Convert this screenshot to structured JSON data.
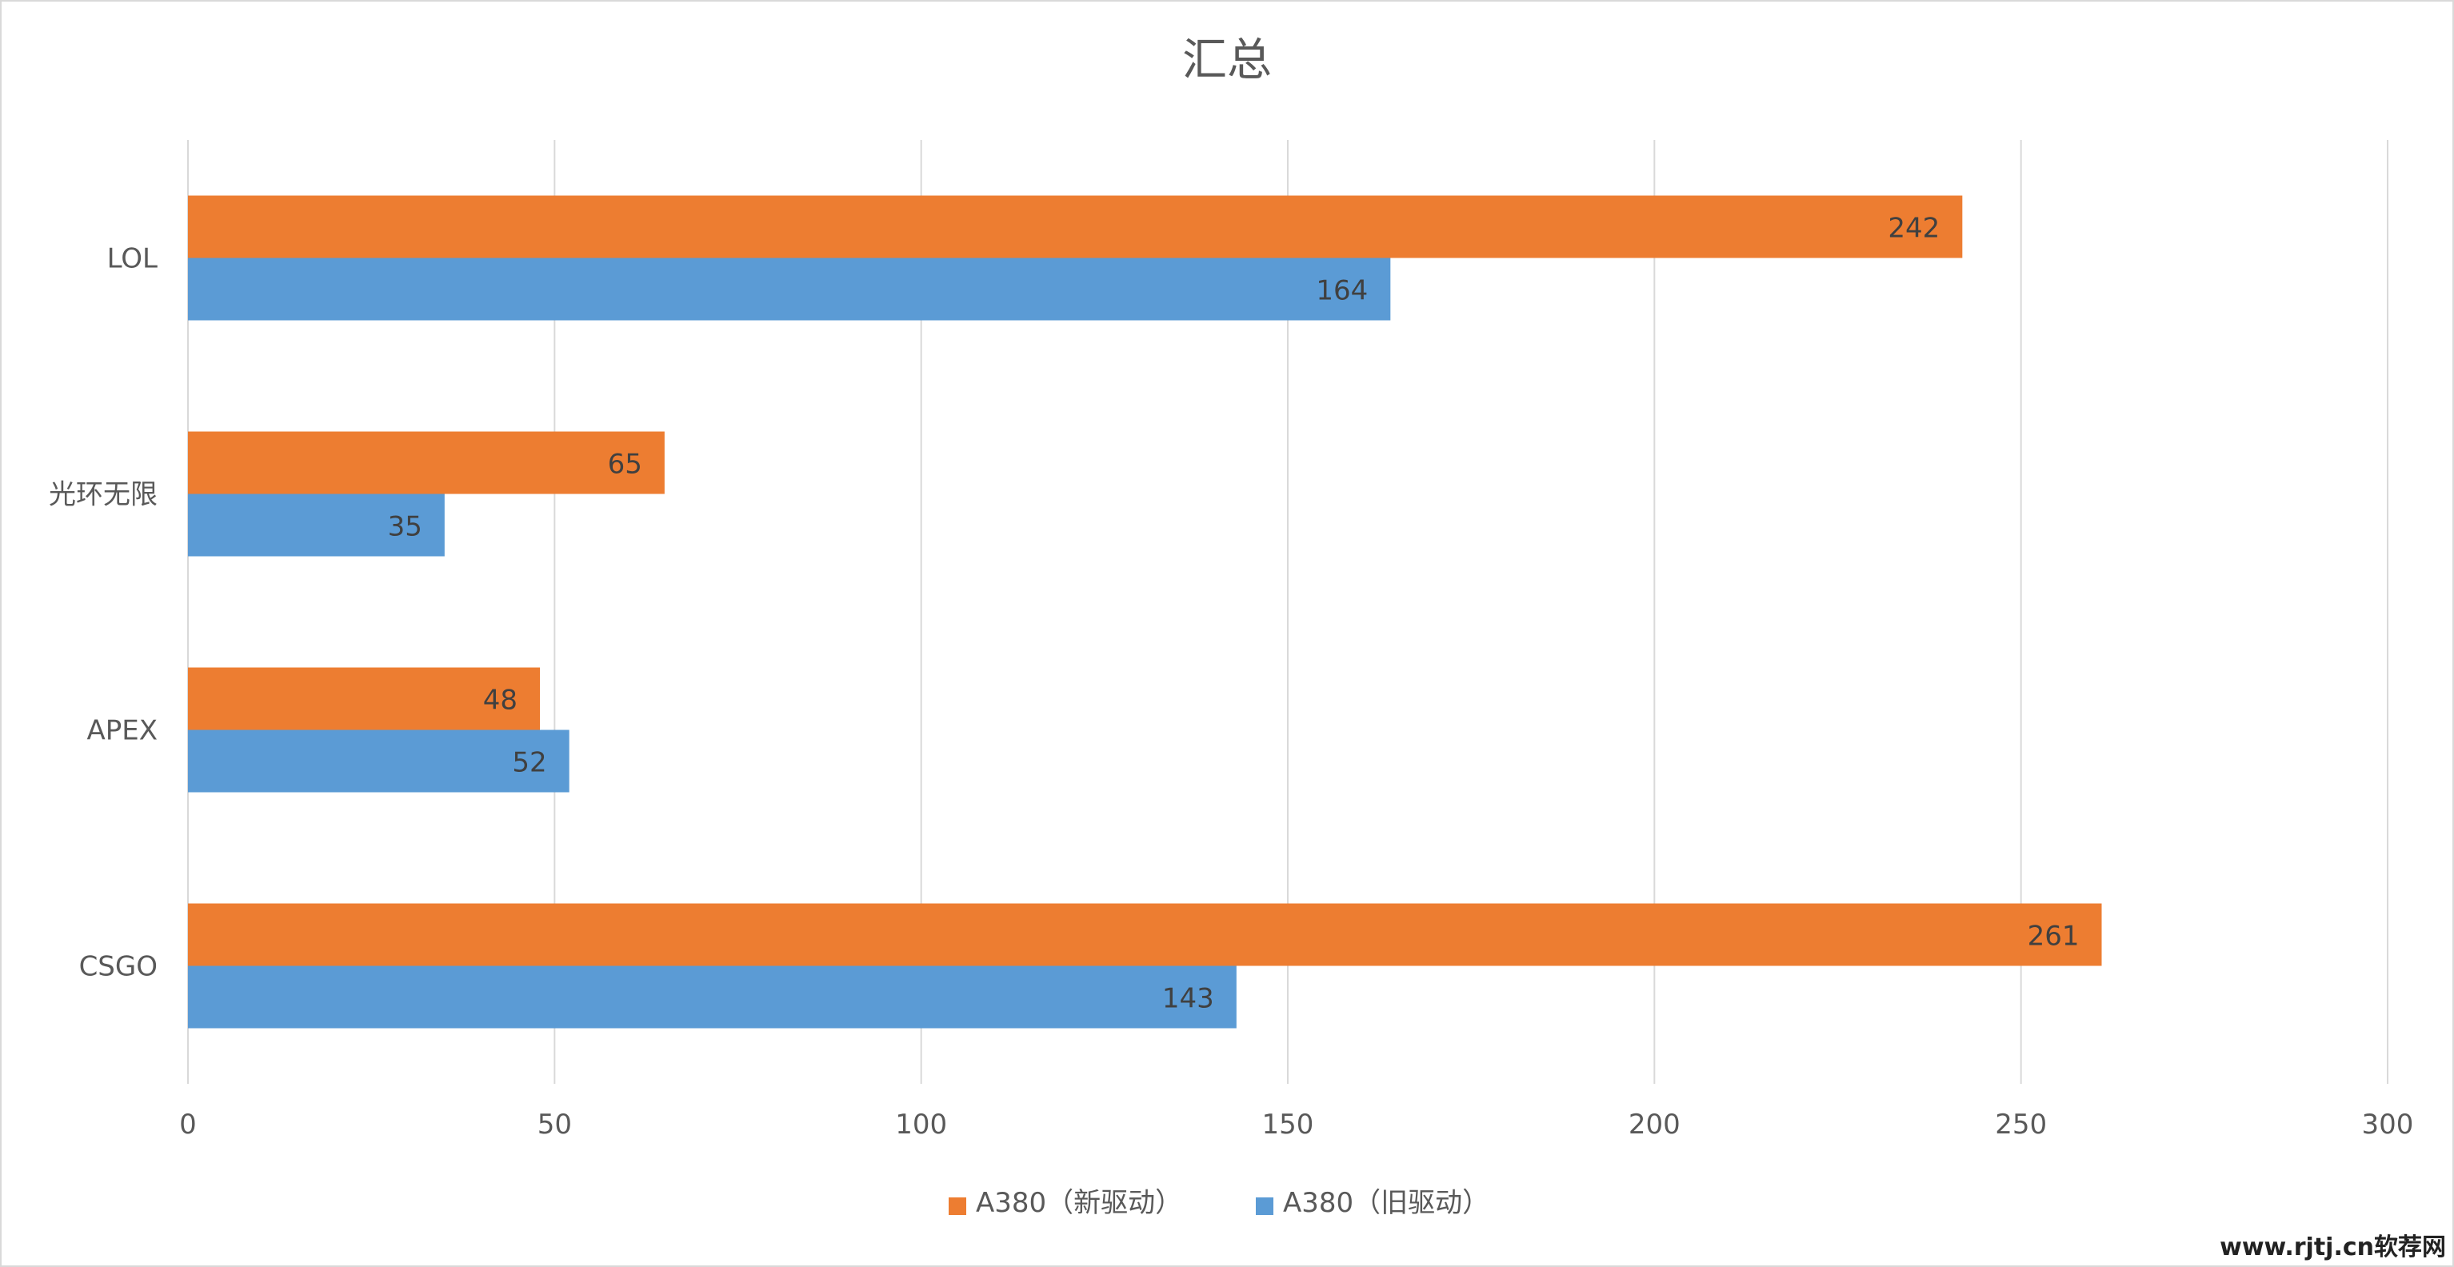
{
  "chart_data": {
    "type": "bar",
    "orientation": "horizontal",
    "title": "汇总",
    "categories": [
      "LOL",
      "光环无限",
      "APEX",
      "CSGO"
    ],
    "series": [
      {
        "name": "A380（新驱动）",
        "values": [
          242,
          65,
          48,
          261
        ],
        "color": "#ED7D31"
      },
      {
        "name": "A380（旧驱动）",
        "values": [
          164,
          35,
          52,
          143
        ],
        "color": "#5B9BD5"
      }
    ],
    "x_ticks": [
      0,
      50,
      100,
      150,
      200,
      250,
      300
    ],
    "xlim": [
      0,
      300
    ],
    "xlabel": "",
    "ylabel": "",
    "grid": true,
    "legend_position": "bottom",
    "data_labels": true
  },
  "watermark": "www.rjtj.cn软荐网"
}
